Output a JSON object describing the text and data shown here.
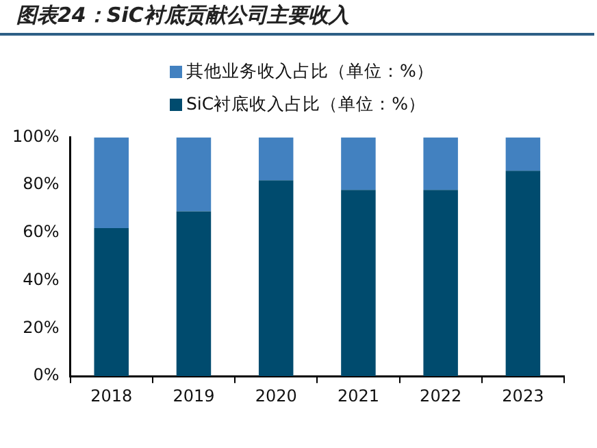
{
  "chart_data": {
    "type": "bar",
    "title": "图表24：SiC衬底贡献公司主要收入",
    "categories": [
      "2018",
      "2019",
      "2020",
      "2021",
      "2022",
      "2023"
    ],
    "series": [
      {
        "name": "SiC衬底收入占比（单位：%）",
        "color": "#004b6e",
        "values": [
          62,
          69,
          82,
          78,
          78,
          86
        ]
      },
      {
        "name": "其他业务收入占比（单位：%）",
        "color": "#4281c0",
        "values": [
          38,
          31,
          18,
          22,
          22,
          14
        ]
      }
    ],
    "stacked": true,
    "ylim": [
      0,
      100
    ],
    "yticks": [
      {
        "value": 0,
        "label": "0%"
      },
      {
        "value": 20,
        "label": "20%"
      },
      {
        "value": 40,
        "label": "40%"
      },
      {
        "value": 60,
        "label": "60%"
      },
      {
        "value": 80,
        "label": "80%"
      },
      {
        "value": 100,
        "label": "100%"
      }
    ],
    "grid": false,
    "legend": "top"
  }
}
